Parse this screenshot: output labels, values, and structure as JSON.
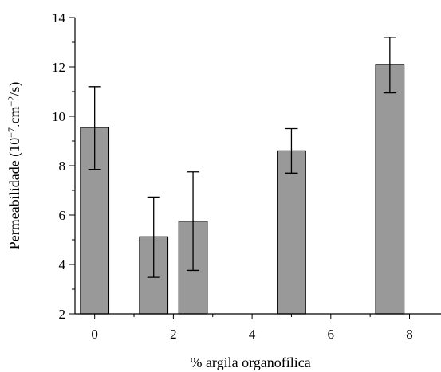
{
  "chart_data": {
    "type": "bar",
    "xlabel": "% argila organofílica",
    "ylabel_main": "Permeabilidade (10",
    "ylabel_exp1": "−7",
    "ylabel_mid": ".cm",
    "ylabel_exp2": "−2",
    "ylabel_end": "/s)",
    "xlim": [
      -0.5,
      8.8
    ],
    "ylim": [
      2,
      14
    ],
    "x_ticks": [
      0,
      2,
      4,
      6,
      8
    ],
    "y_ticks": [
      2,
      4,
      6,
      8,
      10,
      12,
      14
    ],
    "bar_width": 0.72,
    "bar_color": "#999999",
    "bars": [
      {
        "x": 0.0,
        "value": 9.55,
        "err_low": 7.85,
        "err_high": 11.2
      },
      {
        "x": 1.5,
        "value": 5.12,
        "err_low": 3.48,
        "err_high": 6.73
      },
      {
        "x": 2.5,
        "value": 5.75,
        "err_low": 3.76,
        "err_high": 7.75
      },
      {
        "x": 5.0,
        "value": 8.6,
        "err_low": 7.7,
        "err_high": 9.5
      },
      {
        "x": 7.5,
        "value": 12.1,
        "err_low": 10.95,
        "err_high": 13.2
      }
    ],
    "grid": false,
    "legend": "none"
  }
}
